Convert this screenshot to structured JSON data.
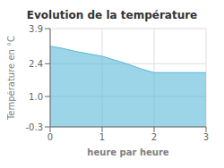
{
  "chart_data": {
    "type": "area",
    "title": "Evolution de la température",
    "xlabel": "heure par heure",
    "ylabel": "Température en °C",
    "x": [
      0,
      0.25,
      0.5,
      0.75,
      1.0,
      1.25,
      1.5,
      1.75,
      2.0,
      2.5,
      3.0
    ],
    "values": [
      3.15,
      3.05,
      2.92,
      2.82,
      2.72,
      2.55,
      2.38,
      2.18,
      2.02,
      2.02,
      2.02
    ],
    "color": "#5ab8d8",
    "xlim": [
      0,
      3
    ],
    "ylim": [
      -0.3,
      3.9
    ],
    "xticks": [
      0,
      1,
      2,
      3
    ],
    "yticks": [
      -0.3,
      {
        "value": 1.0,
        "label": "1.0"
      },
      2.4,
      3.9
    ],
    "grid": true
  }
}
